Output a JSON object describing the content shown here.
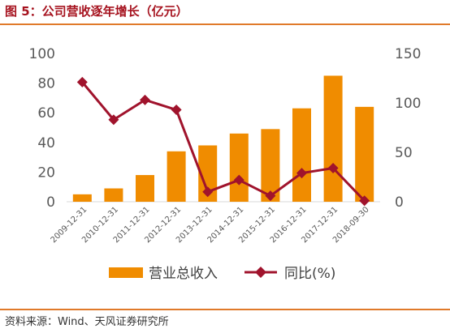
{
  "header": {
    "title": "图 5：公司营收逐年增长（亿元）"
  },
  "footer": {
    "source": "资料来源：Wind、天风证券研究所"
  },
  "chart_data": {
    "type": "bar",
    "categories": [
      "2009-12-31",
      "2010-12-31",
      "2011-12-31",
      "2012-12-31",
      "2013-12-31",
      "2014-12-31",
      "2015-12-31",
      "2016-12-31",
      "2017-12-31",
      "2018-09-30"
    ],
    "series": [
      {
        "name": "营业总收入",
        "type": "bar",
        "axis": "left",
        "color": "#f08c00",
        "values": [
          5,
          9,
          18,
          34,
          38,
          46,
          49,
          63,
          85,
          64
        ]
      },
      {
        "name": "同比(%)",
        "type": "line",
        "axis": "right",
        "color": "#a0132c",
        "values": [
          121,
          83,
          103,
          93,
          10,
          22,
          6,
          29,
          34,
          1
        ]
      }
    ],
    "y_left": {
      "min": 0,
      "max": 100,
      "ticks": [
        "0",
        "20",
        "40",
        "60",
        "80",
        "100"
      ]
    },
    "y_right": {
      "min": 0,
      "max": 150,
      "ticks": [
        "0",
        "50",
        "100",
        "150"
      ]
    },
    "legend": {
      "position": "bottom",
      "items": [
        "营业总收入",
        "同比(%)"
      ]
    },
    "grid": false
  }
}
